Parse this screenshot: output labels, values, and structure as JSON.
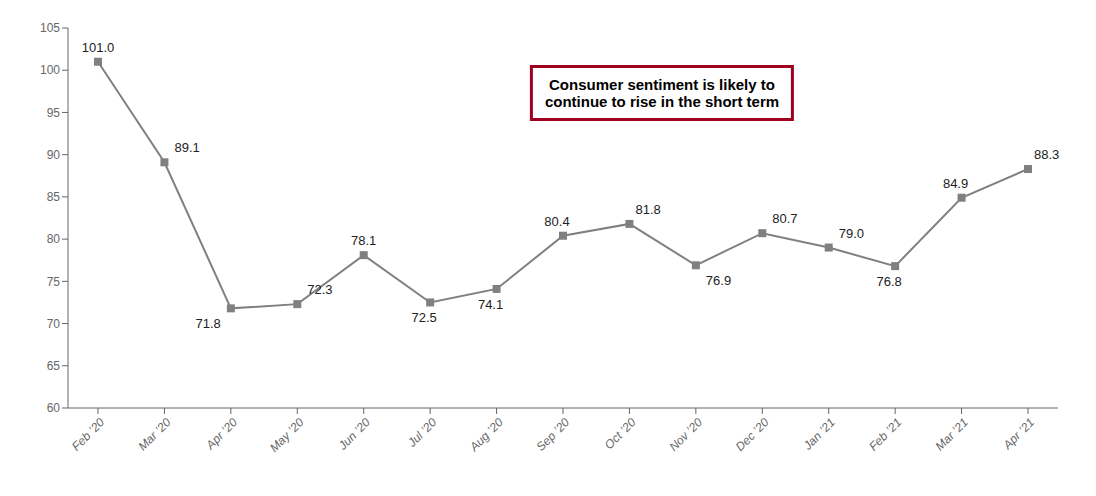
{
  "chart_data": {
    "type": "line",
    "categories": [
      "Feb ’20",
      "Mar ’20",
      "Apr ’20",
      "May ’20",
      "Jun ’20",
      "Jul ’20",
      "Aug ’20",
      "Sep ’20",
      "Oct ’20",
      "Nov ’20",
      "Dec ’20",
      "Jan ’21",
      "Feb ’21",
      "Mar ’21",
      "Apr ’21"
    ],
    "values": [
      101.0,
      89.1,
      71.8,
      72.3,
      78.1,
      72.5,
      74.1,
      80.4,
      81.8,
      76.9,
      80.7,
      79.0,
      76.8,
      84.9,
      88.3
    ],
    "value_labels": [
      "101.0",
      "89.1",
      "71.8",
      "72.3",
      "78.1",
      "72.5",
      "74.1",
      "80.4",
      "81.8",
      "76.9",
      "80.7",
      "79.0",
      "76.8",
      "84.9",
      "88.3"
    ],
    "data_labels": true,
    "color": "#808080",
    "marker": "square",
    "ylim": [
      60,
      105
    ],
    "yticks": [
      60,
      65,
      70,
      75,
      80,
      85,
      90,
      95,
      100,
      105
    ],
    "grid": false,
    "annotations": [
      {
        "text": "Consumer sentiment is likely to\ncontinue to rise in the short term",
        "color": "#a00020"
      }
    ]
  }
}
